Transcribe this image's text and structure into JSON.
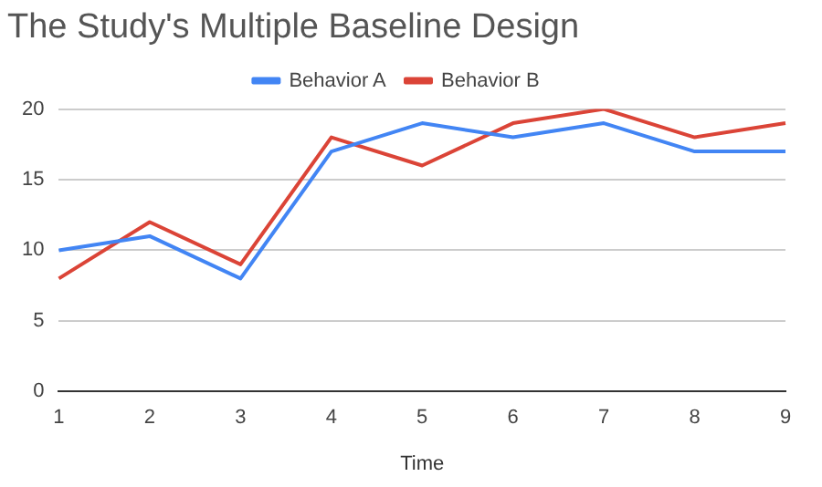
{
  "chart_data": {
    "type": "line",
    "title": "The Study's Multiple Baseline Design",
    "xlabel": "Time",
    "categories": [
      "1",
      "2",
      "3",
      "4",
      "5",
      "6",
      "7",
      "8",
      "9"
    ],
    "series": [
      {
        "name": "Behavior A",
        "color": "#4285f4",
        "values": [
          10,
          11,
          8,
          17,
          19,
          18,
          19,
          17,
          17
        ]
      },
      {
        "name": "Behavior B",
        "color": "#db4437",
        "values": [
          8,
          12,
          9,
          18,
          16,
          19,
          20,
          18,
          19
        ]
      }
    ],
    "ylim": [
      0,
      20
    ],
    "yticks": [
      0,
      5,
      10,
      15,
      20
    ],
    "grid": "y",
    "legend": "top",
    "marker": "none",
    "line_style": "solid"
  }
}
